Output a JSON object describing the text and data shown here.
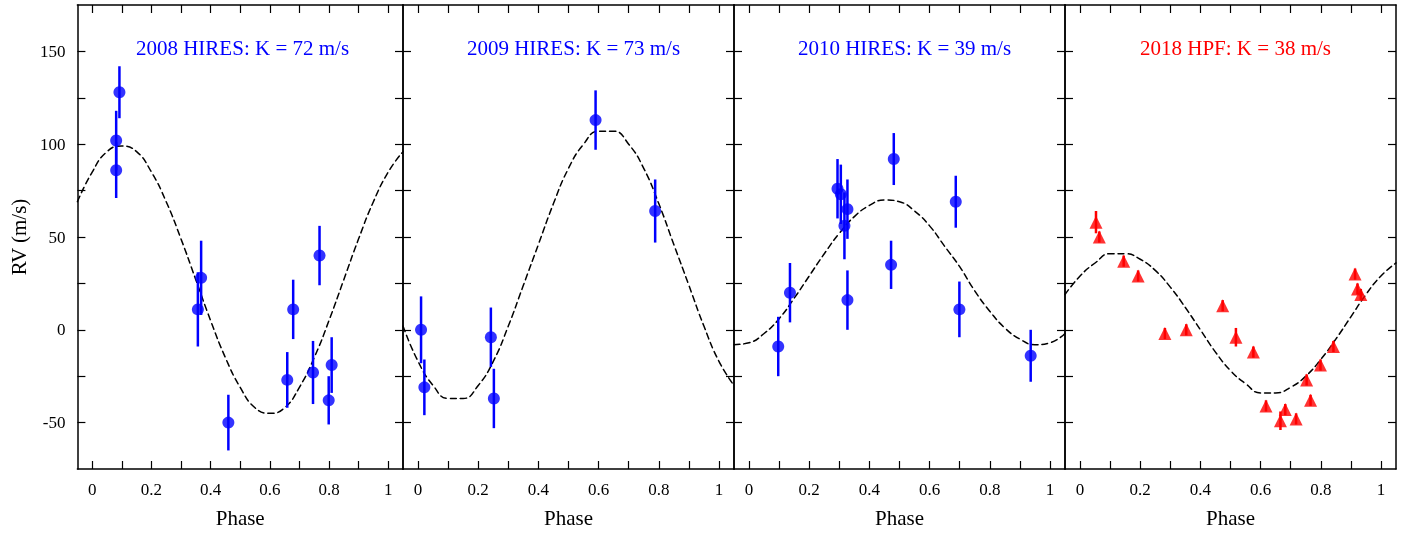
{
  "chart_data": [
    {
      "type": "scatter",
      "title": "2008 HIRES: K = 72 m/s",
      "xlabel": "Phase",
      "ylabel": "RV (m/s)",
      "xlim": [
        -0.05,
        1.05
      ],
      "ylim": [
        -75,
        175
      ],
      "xticks": [
        0,
        {
          "value": 0.1,
          "label": null
        },
        0.2,
        {
          "value": 0.3,
          "label": null
        },
        0.4,
        {
          "value": 0.5,
          "label": null
        },
        0.6,
        {
          "value": 0.7,
          "label": null
        },
        0.8,
        {
          "value": 0.9,
          "label": null
        },
        1
      ],
      "yticks": [
        -50,
        {
          "value": -25,
          "label": null
        },
        0,
        {
          "value": 25,
          "label": null
        },
        50,
        {
          "value": 75,
          "label": null
        },
        100,
        {
          "value": 125,
          "label": null
        },
        150
      ],
      "series": [
        {
          "type": "scatter",
          "color": "#0000ff",
          "marker": "circle",
          "x": [
            0.081,
            0.092,
            0.081,
            0.357,
            0.368,
            0.46,
            0.659,
            0.679,
            0.746,
            0.768,
            0.799,
            0.809
          ],
          "values": [
            102,
            128,
            86,
            11,
            28,
            -50,
            -27,
            11,
            -23,
            40,
            -38,
            -19
          ],
          "errors": [
            16,
            14,
            15,
            20,
            20,
            15,
            15,
            16,
            17,
            16,
            13,
            15
          ]
        },
        {
          "type": "line",
          "color": "#000000",
          "marker": "none",
          "line_style": "dashed",
          "x": [
            -0.05,
            0,
            0.05,
            0.1,
            0.15,
            0.2,
            0.25,
            0.3,
            0.35,
            0.4,
            0.45,
            0.5,
            0.55,
            0.6,
            0.65,
            0.7,
            0.75,
            0.8,
            0.85,
            0.9,
            0.95,
            1,
            1.05
          ],
          "values": [
            69,
            85,
            96,
            99,
            96,
            85,
            69,
            49,
            27,
            5,
            -15,
            -31,
            -42,
            -45,
            -42,
            -31,
            -15,
            5,
            27,
            49,
            69,
            85,
            96
          ]
        }
      ]
    },
    {
      "type": "scatter",
      "title": "2009 HIRES: K = 73 m/s",
      "xlabel": "Phase",
      "xlim": [
        -0.05,
        1.05
      ],
      "ylim": [
        -75,
        175
      ],
      "tick_labels": "x",
      "xticks": [
        0,
        {
          "value": 0.1,
          "label": null
        },
        0.2,
        {
          "value": 0.3,
          "label": null
        },
        0.4,
        {
          "value": 0.5,
          "label": null
        },
        0.6,
        {
          "value": 0.7,
          "label": null
        },
        0.8,
        {
          "value": 0.9,
          "label": null
        },
        1
      ],
      "yticks": [
        -50,
        {
          "value": -25,
          "label": null
        },
        0,
        {
          "value": 25,
          "label": null
        },
        50,
        {
          "value": 75,
          "label": null
        },
        100,
        {
          "value": 125,
          "label": null
        },
        150
      ],
      "series": [
        {
          "type": "scatter",
          "color": "#0000ff",
          "marker": "circle",
          "x": [
            0.01,
            0.021,
            0.242,
            0.252,
            0.59,
            0.788
          ],
          "values": [
            0,
            -31,
            -4,
            -37,
            113,
            64
          ],
          "errors": [
            18,
            15,
            16,
            16,
            16,
            17
          ]
        },
        {
          "type": "line",
          "color": "#000000",
          "marker": "none",
          "line_style": "dashed",
          "x": [
            -0.05,
            0,
            0.05,
            0.1,
            0.15,
            0.2,
            0.25,
            0.3,
            0.35,
            0.4,
            0.45,
            0.5,
            0.55,
            0.6,
            0.65,
            0.7,
            0.75,
            0.8,
            0.85,
            0.9,
            0.95,
            1,
            1.05
          ],
          "values": [
            2,
            -17,
            -30,
            -37,
            -37,
            -30,
            -17,
            2,
            24,
            46,
            68,
            87,
            100,
            107,
            107,
            100,
            87,
            68,
            46,
            24,
            2,
            -17,
            -30
          ]
        }
      ]
    },
    {
      "type": "scatter",
      "title": "2010 HIRES: K = 39 m/s",
      "xlabel": "Phase",
      "xlim": [
        -0.05,
        1.05
      ],
      "ylim": [
        -75,
        175
      ],
      "tick_labels": "x",
      "xticks": [
        0,
        {
          "value": 0.1,
          "label": null
        },
        0.2,
        {
          "value": 0.3,
          "label": null
        },
        0.4,
        {
          "value": 0.5,
          "label": null
        },
        0.6,
        {
          "value": 0.7,
          "label": null
        },
        0.8,
        {
          "value": 0.9,
          "label": null
        },
        1
      ],
      "yticks": [
        -50,
        {
          "value": -25,
          "label": null
        },
        0,
        {
          "value": 25,
          "label": null
        },
        50,
        {
          "value": 75,
          "label": null
        },
        100,
        {
          "value": 125,
          "label": null
        },
        150
      ],
      "series": [
        {
          "type": "scatter",
          "color": "#0000ff",
          "marker": "circle",
          "x": [
            0.097,
            0.136,
            0.294,
            0.305,
            0.317,
            0.327,
            0.327,
            0.472,
            0.481,
            0.687,
            0.699,
            0.936
          ],
          "values": [
            -9,
            20,
            76,
            73,
            56,
            65,
            16,
            35,
            92,
            69,
            11,
            -14
          ],
          "errors": [
            16,
            16,
            16,
            16,
            18,
            16,
            16,
            13,
            14,
            14,
            15,
            14
          ]
        },
        {
          "type": "line",
          "color": "#000000",
          "marker": "none",
          "line_style": "dashed",
          "x": [
            -0.05,
            0,
            0.05,
            0.1,
            0.15,
            0.2,
            0.25,
            0.3,
            0.35,
            0.4,
            0.45,
            0.5,
            0.55,
            0.6,
            0.65,
            0.7,
            0.75,
            0.8,
            0.85,
            0.9,
            0.95,
            1,
            1.05
          ],
          "values": [
            -8,
            -7,
            -2,
            6,
            17,
            29,
            41,
            52,
            61,
            67,
            70,
            69,
            64,
            56,
            45,
            34,
            21,
            10,
            1,
            -5,
            -8,
            -7,
            -2
          ]
        }
      ]
    },
    {
      "type": "scatter",
      "title": "2018 HPF: K = 38 m/s",
      "xlabel": "Phase",
      "xlim": [
        -0.05,
        1.05
      ],
      "ylim": [
        -75,
        175
      ],
      "tick_labels": "x",
      "xticks": [
        0,
        {
          "value": 0.1,
          "label": null
        },
        0.2,
        {
          "value": 0.3,
          "label": null
        },
        0.4,
        {
          "value": 0.5,
          "label": null
        },
        0.6,
        {
          "value": 0.7,
          "label": null
        },
        0.8,
        {
          "value": 0.9,
          "label": null
        },
        1
      ],
      "yticks": [
        -50,
        {
          "value": -25,
          "label": null
        },
        0,
        {
          "value": 25,
          "label": null
        },
        50,
        {
          "value": 75,
          "label": null
        },
        100,
        {
          "value": 125,
          "label": null
        },
        150
      ],
      "series": [
        {
          "type": "scatter",
          "color": "#ff0000",
          "marker": "triangle",
          "x": [
            0.053,
            0.064,
            0.145,
            0.193,
            0.282,
            0.353,
            0.474,
            0.518,
            0.576,
            0.618,
            0.666,
            0.682,
            0.718,
            0.753,
            0.766,
            0.799,
            0.842,
            0.914,
            0.922,
            0.933
          ],
          "values": [
            58,
            50,
            37,
            29,
            -2,
            0,
            13,
            -4,
            -12,
            -41,
            -49,
            -43,
            -48,
            -27,
            -38,
            -19,
            -9,
            30,
            22,
            19
          ],
          "errors": [
            6,
            3,
            3,
            3,
            3,
            3,
            3,
            5,
            3,
            3,
            5,
            3,
            3,
            3,
            3,
            3,
            3,
            3,
            3,
            3
          ]
        },
        {
          "type": "line",
          "color": "#000000",
          "marker": "none",
          "line_style": "dashed",
          "x": [
            -0.05,
            0,
            0.05,
            0.1,
            0.15,
            0.2,
            0.25,
            0.3,
            0.35,
            0.4,
            0.45,
            0.5,
            0.55,
            0.6,
            0.65,
            0.7,
            0.75,
            0.8,
            0.85,
            0.9,
            0.95,
            1,
            1.05
          ],
          "values": [
            19,
            29,
            36,
            41,
            41,
            38,
            32,
            23,
            12,
            0,
            -12,
            -22,
            -29,
            -34,
            -34,
            -31,
            -25,
            -16,
            -5,
            7,
            19,
            29,
            36
          ]
        }
      ]
    }
  ]
}
